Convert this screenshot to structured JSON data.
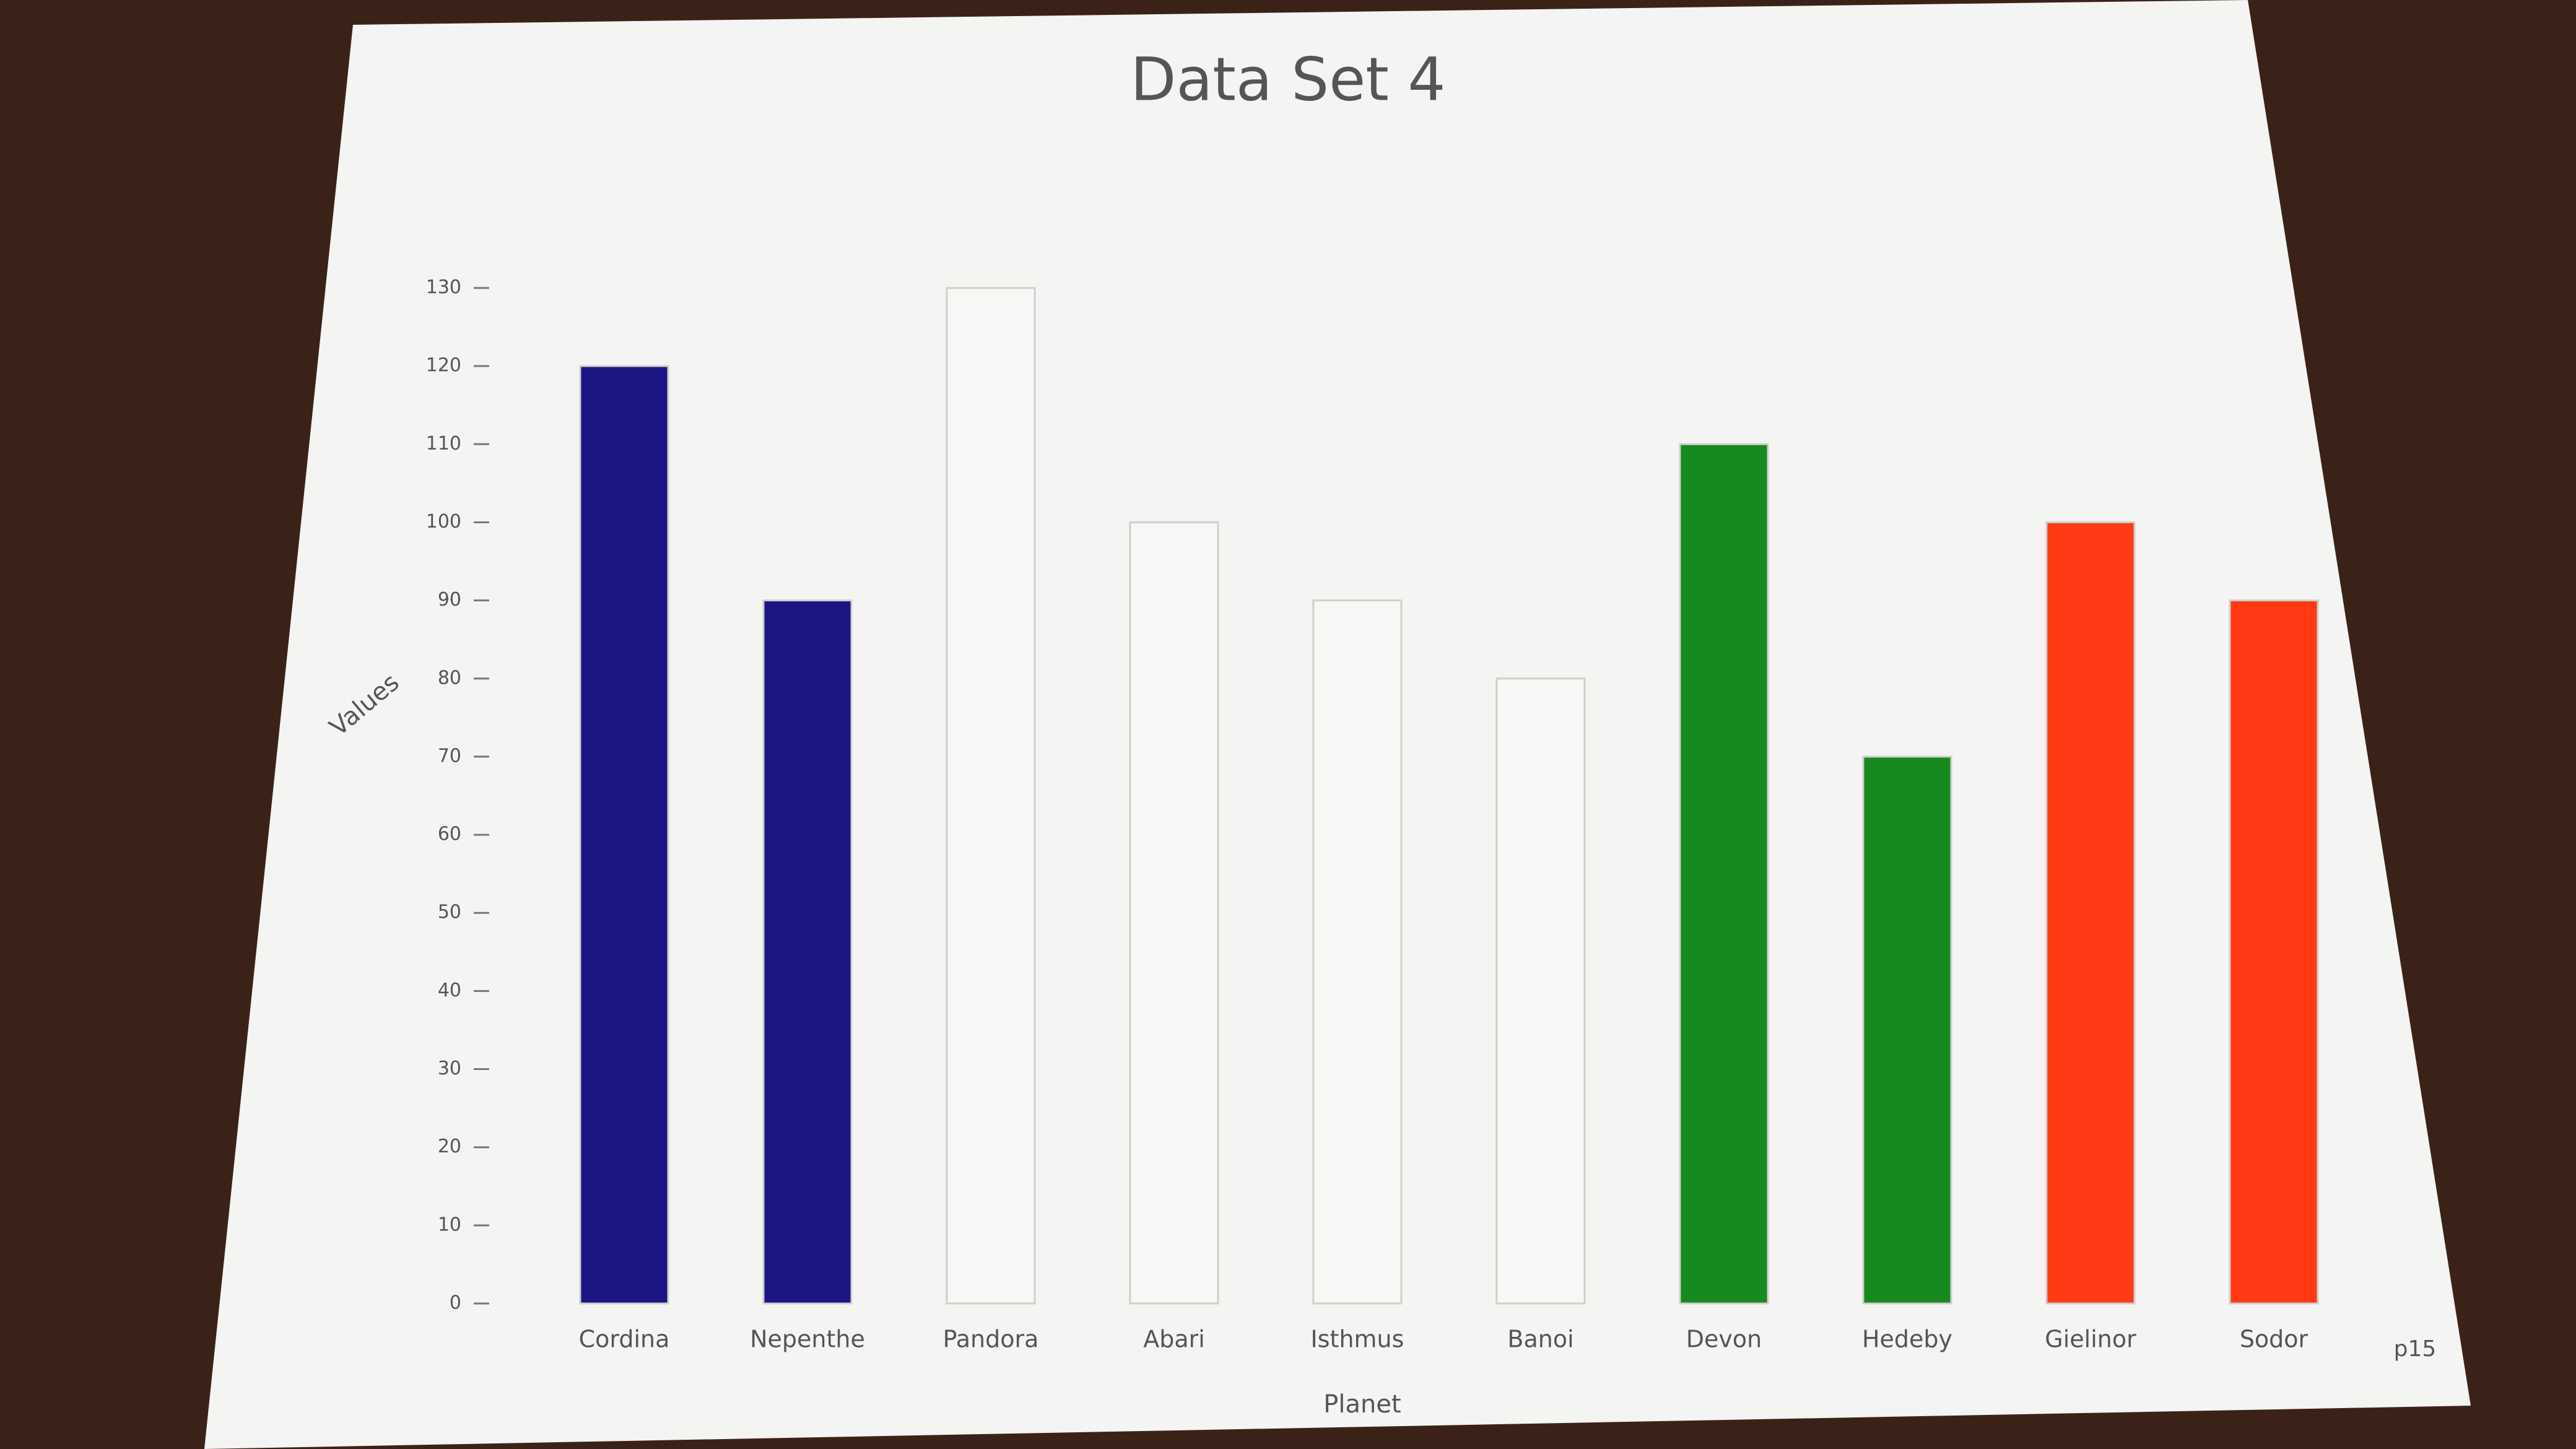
{
  "chart_data": {
    "type": "bar",
    "title": "Data Set 4",
    "y_label": "Values",
    "x_label": "Planet",
    "categories": [
      "Cordina",
      "Nepenthe",
      "Pandora",
      "Abari",
      "Isthmus",
      "Banoi",
      "Devon",
      "Hedeby",
      "Gielinor",
      "Sodor"
    ],
    "values": [
      120,
      90,
      130,
      100,
      90,
      80,
      110,
      70,
      100,
      90
    ],
    "colors": [
      "#1c1584",
      "#1c1584",
      "#f7f7f5",
      "#f7f7f5",
      "#f7f7f5",
      "#f7f7f5",
      "#168a1e",
      "#168a1e",
      "#ff3a14",
      "#ff3a14"
    ],
    "ylim": [
      0,
      130
    ],
    "yticks": [
      0,
      10,
      20,
      30,
      40,
      50,
      60,
      70,
      80,
      90,
      100,
      110,
      120,
      130
    ],
    "grid": false,
    "annotation": "p15"
  }
}
